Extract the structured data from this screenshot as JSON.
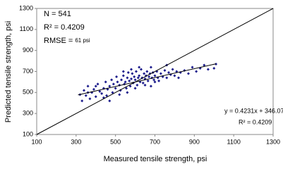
{
  "chart_data": {
    "type": "scatter",
    "x_label": "Measured tensile strength, psi",
    "y_label": "Predicted tensile strength, psi",
    "stats": {
      "n": "N = 541",
      "r2": "R² = 0.4209",
      "rmse_label": "RMSE =",
      "rmse_value": "61 psi"
    },
    "trend_equation": "y = 0.4231x + 346.07",
    "trend_r2": "R² = 0.4209",
    "xlim": [
      100,
      1300
    ],
    "ylim": [
      100,
      1300
    ],
    "xticks": [
      100,
      300,
      500,
      700,
      900,
      1100,
      1300
    ],
    "yticks": [
      100,
      300,
      500,
      700,
      900,
      1100,
      1300
    ],
    "color": "#1c1c8c",
    "reference_line": {
      "x": [
        100,
        1300
      ],
      "y": [
        100,
        1300
      ]
    },
    "trend_line": {
      "x": [
        310,
        1010
      ],
      "y": [
        477,
        773
      ]
    },
    "x": [
      320,
      330,
      340,
      350,
      360,
      370,
      380,
      390,
      400,
      410,
      420,
      430,
      440,
      450,
      455,
      460,
      470,
      480,
      485,
      490,
      500,
      505,
      510,
      520,
      525,
      530,
      540,
      545,
      550,
      555,
      560,
      565,
      570,
      575,
      580,
      585,
      590,
      595,
      600,
      605,
      610,
      615,
      620,
      625,
      630,
      635,
      640,
      645,
      650,
      655,
      660,
      665,
      670,
      675,
      680,
      685,
      690,
      695,
      700,
      710,
      715,
      720,
      730,
      740,
      750,
      760,
      770,
      780,
      790,
      800,
      810,
      820,
      830,
      850,
      870,
      890,
      910,
      930,
      950,
      970,
      1000,
      1010,
      440,
      470,
      520,
      560,
      600,
      650,
      700,
      580,
      620,
      680,
      760,
      540,
      400,
      360
    ],
    "y": [
      480,
      420,
      520,
      470,
      560,
      440,
      500,
      530,
      460,
      580,
      510,
      490,
      540,
      600,
      470,
      530,
      560,
      620,
      500,
      580,
      540,
      650,
      600,
      570,
      520,
      620,
      660,
      580,
      600,
      540,
      640,
      690,
      610,
      560,
      630,
      680,
      590,
      650,
      620,
      700,
      570,
      640,
      660,
      600,
      720,
      640,
      590,
      680,
      630,
      660,
      700,
      610,
      650,
      680,
      560,
      640,
      690,
      620,
      660,
      700,
      640,
      610,
      680,
      650,
      710,
      640,
      690,
      670,
      720,
      660,
      700,
      640,
      690,
      710,
      680,
      740,
      700,
      730,
      760,
      720,
      730,
      770,
      450,
      420,
      480,
      500,
      540,
      570,
      600,
      720,
      740,
      740,
      760,
      700,
      560,
      500
    ]
  }
}
